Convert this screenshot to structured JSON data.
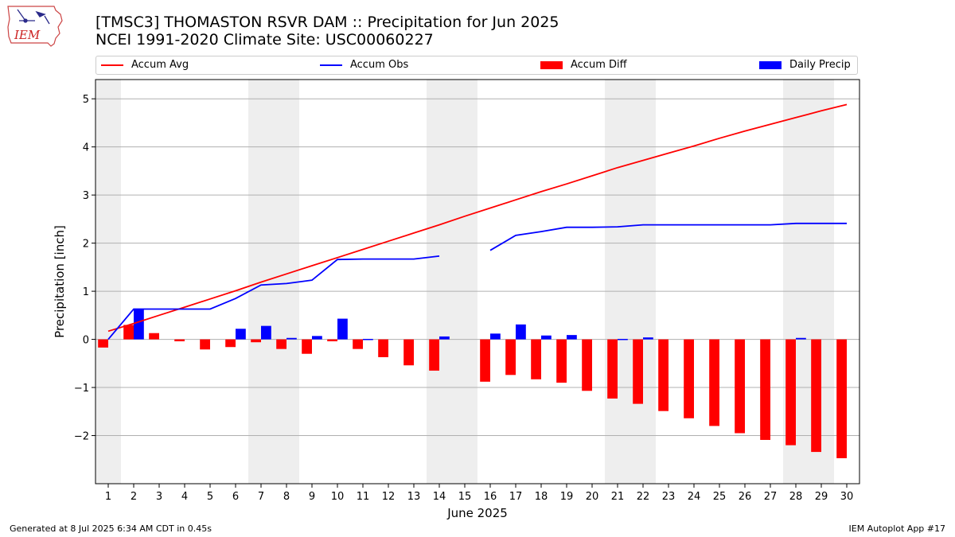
{
  "header": {
    "title_line1": "[TMSC3] THOMASTON RSVR DAM :: Precipitation for Jun 2025",
    "title_line2": "NCEI 1991-2020 Climate Site: USC00060227"
  },
  "logo": {
    "text": "IEM"
  },
  "legend": {
    "accum_avg": "Accum Avg",
    "accum_obs": "Accum Obs",
    "accum_diff": "Accum Diff",
    "daily_precip": "Daily Precip"
  },
  "footer": {
    "left": "Generated at 8 Jul 2025 6:34 AM CDT in 0.45s",
    "right": "IEM Autoplot App #17"
  },
  "colors": {
    "avg": "#ff0000",
    "obs": "#0000ff",
    "diff": "#ff0000",
    "daily": "#0000ff",
    "weekend": "#eeeeee",
    "grid": "#b0b0b0"
  },
  "chart_data": {
    "type": "bar",
    "xlabel": "June 2025",
    "ylabel": "Precipitation [inch]",
    "xlim": [
      0.5,
      30.5
    ],
    "ylim": [
      -3.0,
      5.4
    ],
    "yticks": [
      -2,
      -1,
      0,
      1,
      2,
      3,
      4,
      5
    ],
    "ytick_labels": [
      "−2",
      "−1",
      "0",
      "1",
      "2",
      "3",
      "4",
      "5"
    ],
    "grid": "horizontal",
    "legend_position": "top",
    "weekend_bands": [
      [
        0.5,
        1.5
      ],
      [
        6.5,
        8.5
      ],
      [
        13.5,
        15.5
      ],
      [
        20.5,
        22.5
      ],
      [
        27.5,
        29.5
      ]
    ],
    "days": [
      1,
      2,
      3,
      4,
      5,
      6,
      7,
      8,
      9,
      10,
      11,
      12,
      13,
      14,
      15,
      16,
      17,
      18,
      19,
      20,
      21,
      22,
      23,
      24,
      25,
      26,
      27,
      28,
      29,
      30
    ],
    "series": [
      {
        "name": "Accum Avg",
        "kind": "line",
        "values": [
          0.17,
          0.33,
          0.5,
          0.67,
          0.84,
          1.01,
          1.19,
          1.36,
          1.53,
          1.7,
          1.87,
          2.04,
          2.21,
          2.38,
          2.56,
          2.73,
          2.9,
          3.07,
          3.23,
          3.4,
          3.57,
          3.72,
          3.87,
          4.02,
          4.18,
          4.33,
          4.47,
          4.61,
          4.75,
          4.88
        ]
      },
      {
        "name": "Accum Obs",
        "kind": "line",
        "values": [
          0.0,
          0.63,
          0.63,
          0.63,
          0.63,
          0.85,
          1.13,
          1.16,
          1.23,
          1.66,
          1.67,
          1.67,
          1.67,
          1.73,
          null,
          1.85,
          2.16,
          2.24,
          2.33,
          2.33,
          2.34,
          2.38,
          2.38,
          2.38,
          2.38,
          2.38,
          2.38,
          2.41,
          2.41,
          2.41
        ]
      },
      {
        "name": "Accum Diff",
        "kind": "bar",
        "values": [
          -0.17,
          0.3,
          0.13,
          -0.04,
          -0.21,
          -0.16,
          -0.06,
          -0.2,
          -0.3,
          -0.04,
          -0.2,
          -0.37,
          -0.54,
          -0.65,
          null,
          -0.88,
          -0.74,
          -0.83,
          -0.9,
          -1.07,
          -1.23,
          -1.34,
          -1.49,
          -1.64,
          -1.8,
          -1.95,
          -2.09,
          -2.2,
          -2.34,
          -2.47
        ]
      },
      {
        "name": "Daily Precip",
        "kind": "bar",
        "values": [
          0.0,
          0.63,
          0.0,
          0.0,
          0.0,
          0.22,
          0.28,
          0.03,
          0.07,
          0.43,
          0.01,
          0.0,
          0.0,
          0.06,
          null,
          0.12,
          0.31,
          0.08,
          0.09,
          0.0,
          0.01,
          0.04,
          0.0,
          0.0,
          0.0,
          0.0,
          0.0,
          0.03,
          0.0,
          0.0
        ]
      }
    ]
  }
}
